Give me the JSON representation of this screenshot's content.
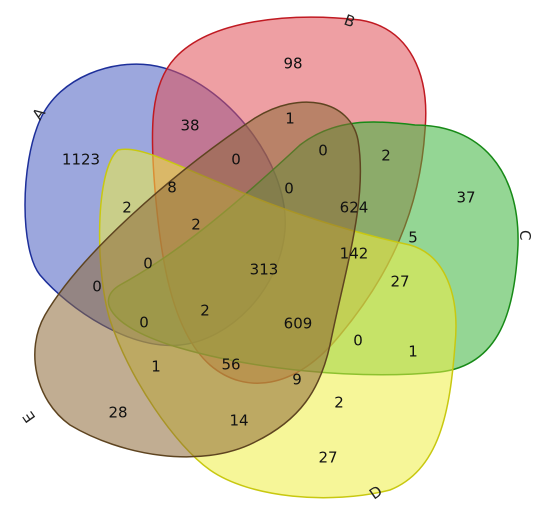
{
  "sets": [
    {
      "id": "A",
      "label": "A",
      "fill": "#4a5fc1",
      "stroke": "#1d2f9a"
    },
    {
      "id": "B",
      "label": "B",
      "fill": "#e05058",
      "stroke": "#c01a22"
    },
    {
      "id": "C",
      "label": "C",
      "fill": "#3cb43c",
      "stroke": "#178a17"
    },
    {
      "id": "D",
      "label": "D",
      "fill": "#eeee44",
      "stroke": "#c8c810"
    },
    {
      "id": "E",
      "label": "E",
      "fill": "#8e6a38",
      "stroke": "#5e4420"
    }
  ],
  "regions": [
    {
      "sets": "A",
      "value": "1123"
    },
    {
      "sets": "B",
      "value": "98"
    },
    {
      "sets": "C",
      "value": "37"
    },
    {
      "sets": "D",
      "value": "27"
    },
    {
      "sets": "E",
      "value": "28"
    },
    {
      "sets": "AB",
      "value": "38"
    },
    {
      "sets": "BE",
      "value": "1"
    },
    {
      "sets": "ABE",
      "value": "0"
    },
    {
      "sets": "BCE",
      "value": "0"
    },
    {
      "sets": "BC",
      "value": "2"
    },
    {
      "sets": "ABD",
      "value": "8"
    },
    {
      "sets": "BCDE",
      "value": "0"
    },
    {
      "sets": "BCD",
      "value": "624"
    },
    {
      "sets": "AD",
      "value": "2"
    },
    {
      "sets": "ABDE",
      "value": "2"
    },
    {
      "sets": "CD_upper",
      "value": "5"
    },
    {
      "sets": "ABCDE",
      "value": "313"
    },
    {
      "sets": "CDE",
      "value": "142"
    },
    {
      "sets": "CD",
      "value": "27"
    },
    {
      "sets": "ADE",
      "value": "0"
    },
    {
      "sets": "AE",
      "value": "0"
    },
    {
      "sets": "ACE",
      "value": "0"
    },
    {
      "sets": "ACDE",
      "value": "2"
    },
    {
      "sets": "BCDE_lower",
      "value": "609"
    },
    {
      "sets": "BD_lower",
      "value": "0"
    },
    {
      "sets": "D_C",
      "value": "1"
    },
    {
      "sets": "CE",
      "value": "1"
    },
    {
      "sets": "CDE_lower",
      "value": "56"
    },
    {
      "sets": "BDE",
      "value": "9"
    },
    {
      "sets": "BD",
      "value": "2"
    },
    {
      "sets": "DE",
      "value": "14"
    }
  ]
}
